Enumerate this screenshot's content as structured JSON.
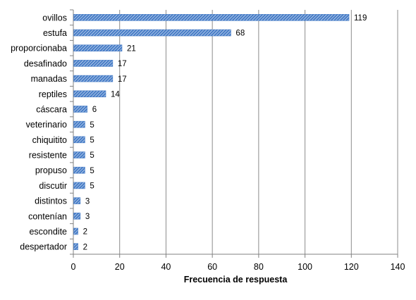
{
  "chart_data": {
    "type": "bar",
    "orientation": "horizontal",
    "categories": [
      "ovillos",
      "estufa",
      "proporcionaba",
      "desafinado",
      "manadas",
      "reptiles",
      "cáscara",
      "veterinario",
      "chiquitito",
      "resistente",
      "propuso",
      "discutir",
      "distintos",
      "contenían",
      "escondite",
      "despertador"
    ],
    "values": [
      119,
      68,
      21,
      17,
      17,
      14,
      6,
      5,
      5,
      5,
      5,
      5,
      3,
      3,
      2,
      2
    ],
    "title": "",
    "xlabel": "Frecuencia de respuesta",
    "ylabel": "",
    "xlim": [
      0,
      140
    ],
    "xticks": [
      0,
      20,
      40,
      60,
      80,
      100,
      120,
      140
    ],
    "xtick_labels": [
      "0",
      "20",
      "40",
      "60",
      "80",
      "100",
      "120",
      "140"
    ],
    "data_labels": [
      "119",
      "68",
      "21",
      "17",
      "17",
      "14",
      "6",
      "5",
      "5",
      "5",
      "5",
      "5",
      "3",
      "3",
      "2",
      "2"
    ],
    "grid": "vertical",
    "legend": "none",
    "colors": {
      "bar_fill": "#4a7fc8",
      "bar_hatch": "#ffffff",
      "grid": "#8c8c8c",
      "axis": "#808080",
      "text": "#000000"
    }
  }
}
